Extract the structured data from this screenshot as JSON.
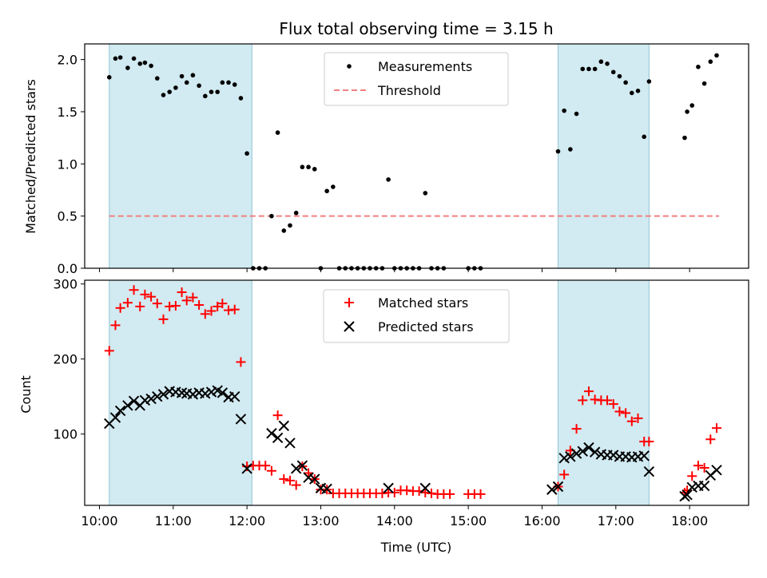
{
  "chart_data": {
    "type": "scatter",
    "title": "Flux total observing time = 3.15 h",
    "xlabel": "Time (UTC)",
    "x_ticks": [
      "10:00",
      "11:00",
      "12:00",
      "13:00",
      "14:00",
      "15:00",
      "16:00",
      "17:00",
      "18:00"
    ],
    "xlim": [
      "09:48",
      "18:48"
    ],
    "shaded_intervals": [
      [
        "10:08",
        "12:04"
      ],
      [
        "16:13",
        "17:27"
      ]
    ],
    "shade_color": "#add8e6",
    "panels": [
      {
        "ylabel": "Matched/Predicted stars",
        "ylim": [
          0,
          2.15
        ],
        "y_ticks": [
          "0.0",
          "0.5",
          "1.0",
          "1.5",
          "2.0"
        ],
        "legend": {
          "placement": "top-center",
          "entries": [
            "Measurements",
            "Threshold"
          ]
        },
        "threshold": {
          "name": "Threshold",
          "value": 0.5,
          "x": [
            "10:08",
            "18:24"
          ],
          "color": "#f08080",
          "style": "dashed"
        },
        "series": [
          {
            "name": "Measurements",
            "marker": "dot",
            "color": "#000000",
            "points": [
              [
                "10:08",
                1.83
              ],
              [
                "10:13",
                2.01
              ],
              [
                "10:17",
                2.02
              ],
              [
                "10:23",
                1.92
              ],
              [
                "10:28",
                2.01
              ],
              [
                "10:33",
                1.96
              ],
              [
                "10:37",
                1.97
              ],
              [
                "10:42",
                1.94
              ],
              [
                "10:47",
                1.82
              ],
              [
                "10:52",
                1.66
              ],
              [
                "10:57",
                1.69
              ],
              [
                "11:02",
                1.73
              ],
              [
                "11:07",
                1.84
              ],
              [
                "11:11",
                1.78
              ],
              [
                "11:16",
                1.85
              ],
              [
                "11:21",
                1.75
              ],
              [
                "11:26",
                1.65
              ],
              [
                "11:31",
                1.69
              ],
              [
                "11:36",
                1.69
              ],
              [
                "11:40",
                1.78
              ],
              [
                "11:45",
                1.78
              ],
              [
                "11:50",
                1.76
              ],
              [
                "11:55",
                1.63
              ],
              [
                "12:00",
                1.1
              ],
              [
                "12:05",
                0.0
              ],
              [
                "12:10",
                0.0
              ],
              [
                "12:15",
                0.0
              ],
              [
                "12:20",
                0.5
              ],
              [
                "12:25",
                1.3
              ],
              [
                "12:30",
                0.36
              ],
              [
                "12:35",
                0.41
              ],
              [
                "12:40",
                0.53
              ],
              [
                "12:45",
                0.97
              ],
              [
                "12:50",
                0.97
              ],
              [
                "12:55",
                0.95
              ],
              [
                "13:00",
                0.0
              ],
              [
                "13:05",
                0.74
              ],
              [
                "13:10",
                0.78
              ],
              [
                "13:15",
                0.0
              ],
              [
                "13:20",
                0.0
              ],
              [
                "13:25",
                0.0
              ],
              [
                "13:30",
                0.0
              ],
              [
                "13:35",
                0.0
              ],
              [
                "13:40",
                0.0
              ],
              [
                "13:45",
                0.0
              ],
              [
                "13:50",
                0.0
              ],
              [
                "13:55",
                0.85
              ],
              [
                "14:00",
                0.0
              ],
              [
                "14:05",
                0.0
              ],
              [
                "14:10",
                0.0
              ],
              [
                "14:15",
                0.0
              ],
              [
                "14:20",
                0.0
              ],
              [
                "14:25",
                0.72
              ],
              [
                "14:30",
                0.0
              ],
              [
                "14:35",
                0.0
              ],
              [
                "14:40",
                0.0
              ],
              [
                "15:00",
                0.0
              ],
              [
                "15:05",
                0.0
              ],
              [
                "15:10",
                0.0
              ],
              [
                "16:13",
                1.12
              ],
              [
                "16:18",
                1.51
              ],
              [
                "16:23",
                1.14
              ],
              [
                "16:28",
                1.48
              ],
              [
                "16:33",
                1.91
              ],
              [
                "16:38",
                1.91
              ],
              [
                "16:43",
                1.91
              ],
              [
                "16:48",
                1.98
              ],
              [
                "16:53",
                1.96
              ],
              [
                "16:58",
                1.88
              ],
              [
                "17:03",
                1.84
              ],
              [
                "17:08",
                1.78
              ],
              [
                "17:13",
                1.68
              ],
              [
                "17:18",
                1.7
              ],
              [
                "17:23",
                1.26
              ],
              [
                "17:27",
                1.79
              ],
              [
                "17:56",
                1.25
              ],
              [
                "17:58",
                1.5
              ],
              [
                "18:02",
                1.56
              ],
              [
                "18:07",
                1.93
              ],
              [
                "18:12",
                1.77
              ],
              [
                "18:17",
                1.98
              ],
              [
                "18:22",
                2.04
              ]
            ]
          }
        ]
      },
      {
        "ylabel": "Count",
        "ylim": [
          5,
          305
        ],
        "y_ticks": [
          "100",
          "200",
          "300"
        ],
        "legend": {
          "placement": "top-center",
          "entries": [
            "Matched stars",
            "Predicted stars"
          ]
        },
        "series": [
          {
            "name": "Matched stars",
            "marker": "plus",
            "color": "#ff0000",
            "points": [
              [
                "10:08",
                211
              ],
              [
                "10:13",
                245
              ],
              [
                "10:17",
                268
              ],
              [
                "10:23",
                275
              ],
              [
                "10:28",
                292
              ],
              [
                "10:33",
                270
              ],
              [
                "10:37",
                286
              ],
              [
                "10:42",
                283
              ],
              [
                "10:47",
                274
              ],
              [
                "10:52",
                253
              ],
              [
                "10:57",
                270
              ],
              [
                "11:02",
                271
              ],
              [
                "11:07",
                289
              ],
              [
                "11:11",
                278
              ],
              [
                "11:16",
                282
              ],
              [
                "11:21",
                272
              ],
              [
                "11:26",
                260
              ],
              [
                "11:31",
                264
              ],
              [
                "11:36",
                270
              ],
              [
                "11:40",
                274
              ],
              [
                "11:45",
                265
              ],
              [
                "11:50",
                266
              ],
              [
                "11:55",
                196
              ],
              [
                "12:00",
                57
              ],
              [
                "12:05",
                58
              ],
              [
                "12:10",
                58
              ],
              [
                "12:15",
                58
              ],
              [
                "12:20",
                51
              ],
              [
                "12:25",
                125
              ],
              [
                "12:30",
                40
              ],
              [
                "12:35",
                38
              ],
              [
                "12:40",
                32
              ],
              [
                "12:45",
                57
              ],
              [
                "12:50",
                48
              ],
              [
                "12:55",
                40
              ],
              [
                "13:00",
                26
              ],
              [
                "13:05",
                26
              ],
              [
                "13:10",
                21
              ],
              [
                "13:15",
                21
              ],
              [
                "13:20",
                21
              ],
              [
                "13:25",
                21
              ],
              [
                "13:30",
                21
              ],
              [
                "13:35",
                21
              ],
              [
                "13:40",
                21
              ],
              [
                "13:45",
                21
              ],
              [
                "13:50",
                21
              ],
              [
                "13:55",
                22
              ],
              [
                "14:00",
                22
              ],
              [
                "14:05",
                25
              ],
              [
                "14:10",
                25
              ],
              [
                "14:15",
                24
              ],
              [
                "14:20",
                24
              ],
              [
                "14:25",
                22
              ],
              [
                "14:30",
                21
              ],
              [
                "14:35",
                20
              ],
              [
                "14:40",
                20
              ],
              [
                "14:45",
                20
              ],
              [
                "15:00",
                20
              ],
              [
                "15:05",
                20
              ],
              [
                "15:10",
                20
              ],
              [
                "16:13",
                30
              ],
              [
                "16:18",
                46
              ],
              [
                "16:23",
                78
              ],
              [
                "16:28",
                107
              ],
              [
                "16:33",
                145
              ],
              [
                "16:38",
                157
              ],
              [
                "16:43",
                146
              ],
              [
                "16:48",
                145
              ],
              [
                "16:53",
                145
              ],
              [
                "16:58",
                140
              ],
              [
                "17:03",
                130
              ],
              [
                "17:08",
                128
              ],
              [
                "17:13",
                117
              ],
              [
                "17:18",
                121
              ],
              [
                "17:23",
                90
              ],
              [
                "17:27",
                90
              ],
              [
                "17:56",
                22
              ],
              [
                "17:58",
                25
              ],
              [
                "18:02",
                44
              ],
              [
                "18:07",
                58
              ],
              [
                "18:12",
                55
              ],
              [
                "18:17",
                93
              ],
              [
                "18:22",
                108
              ]
            ]
          },
          {
            "name": "Predicted stars",
            "marker": "x",
            "color": "#000000",
            "points": [
              [
                "10:08",
                114
              ],
              [
                "10:13",
                122
              ],
              [
                "10:17",
                131
              ],
              [
                "10:23",
                138
              ],
              [
                "10:28",
                144
              ],
              [
                "10:33",
                138
              ],
              [
                "10:37",
                145
              ],
              [
                "10:42",
                147
              ],
              [
                "10:47",
                150
              ],
              [
                "10:52",
                153
              ],
              [
                "10:57",
                157
              ],
              [
                "11:02",
                156
              ],
              [
                "11:07",
                155
              ],
              [
                "11:11",
                154
              ],
              [
                "11:16",
                153
              ],
              [
                "11:21",
                155
              ],
              [
                "11:26",
                154
              ],
              [
                "11:31",
                156
              ],
              [
                "11:36",
                158
              ],
              [
                "11:40",
                155
              ],
              [
                "11:45",
                149
              ],
              [
                "11:50",
                150
              ],
              [
                "11:55",
                120
              ],
              [
                "12:00",
                54
              ],
              [
                "12:20",
                101
              ],
              [
                "12:25",
                95
              ],
              [
                "12:30",
                111
              ],
              [
                "12:35",
                88
              ],
              [
                "12:40",
                54
              ],
              [
                "12:45",
                58
              ],
              [
                "12:50",
                42
              ],
              [
                "12:55",
                40
              ],
              [
                "13:00",
                28
              ],
              [
                "13:05",
                27
              ],
              [
                "13:55",
                28
              ],
              [
                "14:25",
                28
              ],
              [
                "16:08",
                26
              ],
              [
                "16:13",
                30
              ],
              [
                "16:18",
                68
              ],
              [
                "16:23",
                70
              ],
              [
                "16:28",
                74
              ],
              [
                "16:33",
                77
              ],
              [
                "16:38",
                82
              ],
              [
                "16:43",
                76
              ],
              [
                "16:48",
                73
              ],
              [
                "16:53",
                72
              ],
              [
                "16:58",
                72
              ],
              [
                "17:03",
                70
              ],
              [
                "17:08",
                70
              ],
              [
                "17:13",
                69
              ],
              [
                "17:18",
                70
              ],
              [
                "17:23",
                71
              ],
              [
                "17:27",
                50
              ],
              [
                "17:56",
                17
              ],
              [
                "17:58",
                19
              ],
              [
                "18:02",
                29
              ],
              [
                "18:07",
                31
              ],
              [
                "18:12",
                31
              ],
              [
                "18:17",
                45
              ],
              [
                "18:22",
                52
              ]
            ]
          }
        ]
      }
    ]
  }
}
